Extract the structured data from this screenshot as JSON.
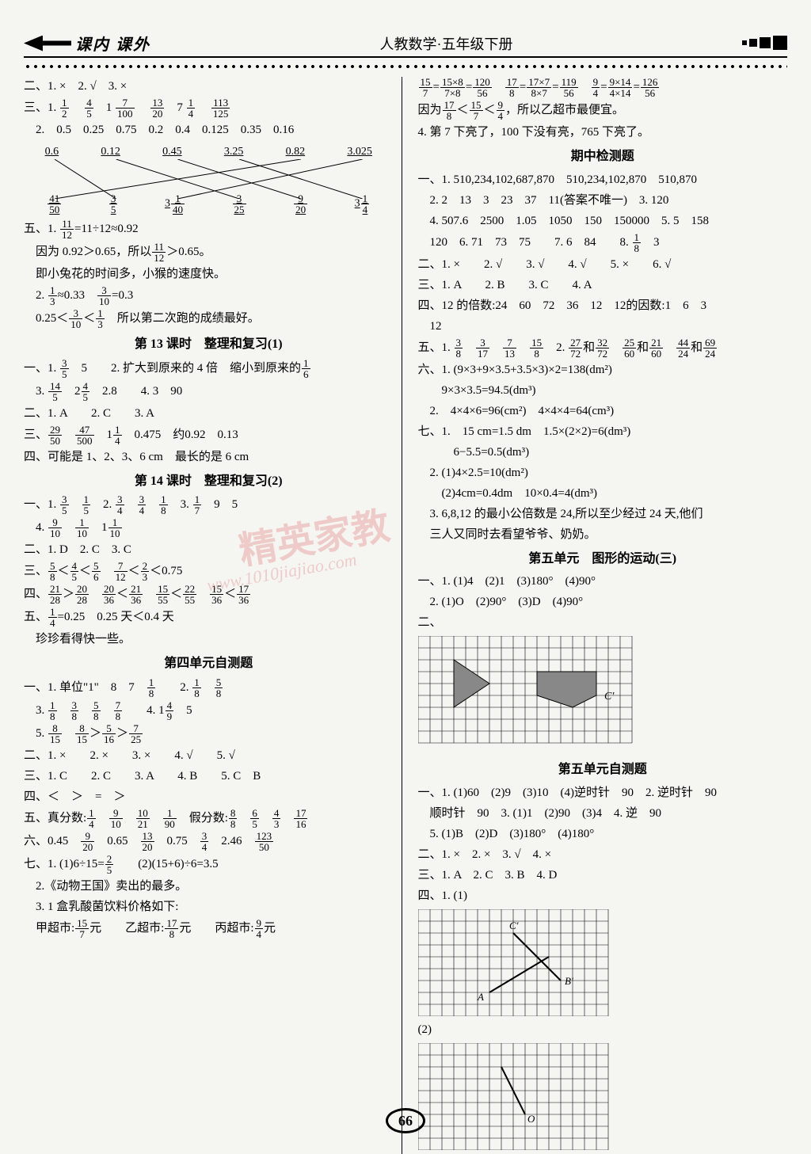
{
  "header": {
    "logo": "课内 课外",
    "title": "人教数学·五年级下册"
  },
  "page_number": "66",
  "watermark": "精英家教",
  "watermark_url": "www.1010jiajiao.com",
  "left": {
    "l1": "二、1. ×　2. √　3. ×",
    "l2a": "三、1.",
    "l3": "　2.　0.5　0.25　0.75　0.2　0.4　0.125　0.35　0.16",
    "l4": "四、0.6　　0.12　　0.45　　3.25　　0.82　　3.025",
    "match_top": [
      "0.6",
      "0.12",
      "0.45",
      "3.25",
      "0.82",
      "3.025"
    ],
    "l5a": "五、1.",
    "l5b": "=11÷12≈0.92",
    "l6a": "　因为 0.92＞0.65，所以",
    "l6b": "＞0.65。",
    "l7": "　即小兔花的时间多，小猴的速度快。",
    "l8a": "　2.",
    "l8b": "≈0.33　",
    "l8c": "=0.3",
    "l9a": "　0.25＜",
    "l9b": "＜",
    "l9c": "　所以第二次跑的成绩最好。",
    "s13": "第 13 课时　整理和复习(1)",
    "l10a": "一、1.",
    "l10b": "　5　　2. 扩大到原来的 4 倍　缩小到原来的",
    "l11a": "　3.",
    "l11b": "　2",
    "l11c": "　2.8　　4. 3　90",
    "l12": "二、1. A　　2. C　　3. A",
    "l13a": "三、",
    "l13b": "　",
    "l13c": "　1",
    "l13d": "　0.475　约0.92　0.13",
    "l14": "四、可能是 1、2、3、6 cm　最长的是 6 cm",
    "s14": "第 14 课时　整理和复习(2)",
    "l15a": "一、1.",
    "l15b": "　",
    "l15c": "　2.",
    "l15d": "　",
    "l15e": "　",
    "l15f": "　3.",
    "l15g": "　9　5",
    "l16a": "　4.",
    "l16b": "　",
    "l16c": "　1",
    "l17": "二、1. D　2. C　3. C",
    "l18a": "三、",
    "l18b": "＜",
    "l18c": "＜",
    "l18d": "　",
    "l18e": "＜",
    "l18f": "＜0.75",
    "l19a": "四、",
    "l19b": "＞",
    "l19c": "　",
    "l19d": "＜",
    "l19e": "　",
    "l19f": "＜",
    "l19g": "　",
    "l19h": "＜",
    "l20a": "五、",
    "l20b": "=0.25　0.25 天＜0.4 天",
    "l21": "　珍珍看得快一些。",
    "s4": "第四单元自测题",
    "l22a": "一、1. 单位\"1\"　8　7　",
    "l22b": "　　2.",
    "l22c": "　",
    "l23a": "　3.",
    "l23b": "　",
    "l23c": "　",
    "l23d": "　",
    "l23e": "　　4. 1",
    "l23f": "　5",
    "l24a": "　5.",
    "l24b": "　",
    "l24c": "＞",
    "l24d": "＞",
    "l25": "二、1. ×　　2. ×　　3. ×　　4. √　　5. √",
    "l26": "三、1. C　　2. C　　3. A　　4. B　　5. C　B",
    "l27": "四、＜　＞　=　＞",
    "l28a": "五、真分数:",
    "l28b": "　",
    "l28c": "　",
    "l28d": "　",
    "l28e": "　假分数:",
    "l28f": "　",
    "l28g": "　",
    "l28h": "　",
    "l29a": "六、0.45　",
    "l29b": "　0.65　",
    "l29c": "　0.75　",
    "l29d": "　2.46　",
    "l30a": "七、1. (1)6÷15=",
    "l30b": "　　(2)(15+6)÷6=3.5",
    "l31": "　2.《动物王国》卖出的最多。",
    "l32": "　3. 1 盒乳酸菌饮料价格如下:",
    "l33a": "　甲超市:",
    "l33b": "元　　乙超市:",
    "l33c": "元　　丙超市:",
    "l33d": "元"
  },
  "right": {
    "l1a": "=",
    "l1b": "=",
    "l1c": "　",
    "l1d": "=",
    "l1e": "=",
    "l1f": "　",
    "l1g": "=",
    "l1h": "=",
    "l2a": "因为",
    "l2b": "＜",
    "l2c": "＜",
    "l2d": "，所以乙超市最便宜。",
    "l3": "4. 第 7 下亮了，100 下没有亮，765 下亮了。",
    "sm": "期中检测题",
    "l4": "一、1. 510,234,102,687,870　510,234,102,870　510,870",
    "l5": "　2. 2　13　3　23　37　11(答案不唯一)　3. 120",
    "l6": "　4. 507.6　2500　1.05　1050　150　150000　5. 5　158",
    "l7a": "　120　6. 71　73　75　　7. 6　84　　8.",
    "l7b": "　3",
    "l8": "二、1. ×　　2. √　　3. √　　4. √　　5. ×　　6. √",
    "l9": "三、1. A　　2. B　　3. C　　4. A",
    "l10": "四、12 的倍数:24　60　72　36　12　12的因数:1　6　3",
    "l10b": "　12",
    "l11a": "五、1.",
    "l11b": "　",
    "l11c": "　",
    "l11d": "　",
    "l11e": "　2.",
    "l11f": "和",
    "l11g": "　",
    "l11h": "和",
    "l11i": "　",
    "l11j": "和",
    "l12": "六、1. (9×3+9×3.5+3.5×3)×2=138(dm²)",
    "l13": "　　9×3×3.5=94.5(dm³)",
    "l14": "　2.　4×4×6=96(cm²)　4×4×4=64(cm³)",
    "l15": "七、1.　15 cm=1.5 dm　1.5×(2×2)=6(dm³)",
    "l16": "　　　6−5.5=0.5(dm³)",
    "l17": "　2. (1)4×2.5=10(dm²)",
    "l18": "　　(2)4cm=0.4dm　10×0.4=4(dm³)",
    "l19": "　3. 6,8,12 的最小公倍数是 24,所以至少经过 24 天,他们",
    "l20": "　三人又同时去看望爷爷、奶奶。",
    "s5": "第五单元　图形的运动(三)",
    "l21": "一、1. (1)4　(2)1　(3)180°　(4)90°",
    "l22": "　2. (1)O　(2)90°　(3)D　(4)90°",
    "s5t": "第五单元自测题",
    "l23": "一、1. (1)60　(2)9　(3)10　(4)逆时针　90　2. 逆时针　90",
    "l24": "　顺时针　90　3. (1)1　(2)90　(3)4　4. 逆　90",
    "l25": "　5. (1)B　(2)D　(3)180°　(4)180°",
    "l26": "二、1. ×　2. ×　3. √　4. ×",
    "l27": "三、1. A　2. C　3. B　4. D",
    "l28": "四、1. (1)",
    "l28b": "(2)",
    "letters": {
      "a": "A",
      "b": "B'",
      "c": "C'",
      "o": "O"
    }
  },
  "grid_style": {
    "stroke": "#000000",
    "cell": 15,
    "cols": 16,
    "rows": 9
  }
}
